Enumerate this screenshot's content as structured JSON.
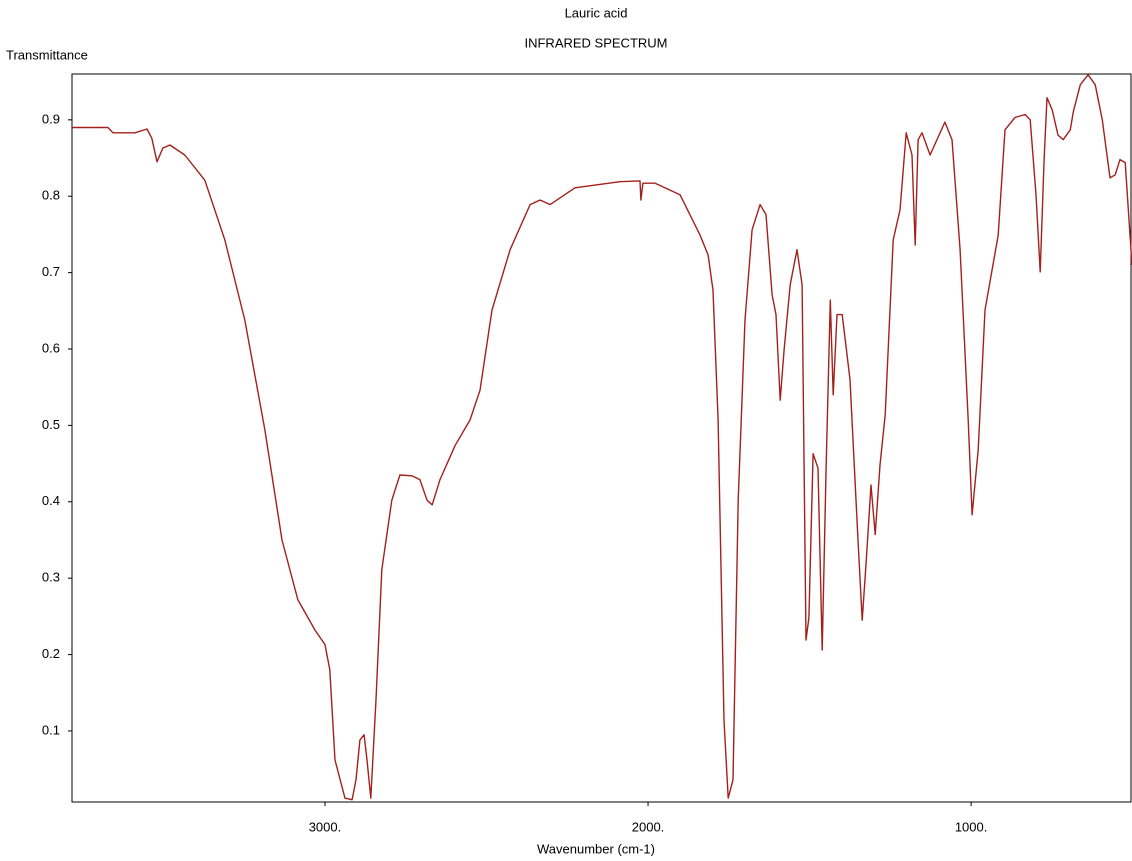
{
  "chart_data": {
    "type": "line",
    "title": "Lauric acid",
    "subtitle": "INFRARED SPECTRUM",
    "y_label": "Transmittance",
    "x_label": "Wavenumber (cm-1)",
    "color": "#a3201c",
    "xlim": [
      3783,
      502
    ],
    "ylim": [
      0.007,
      0.96
    ],
    "xticks": [
      {
        "value": 3000,
        "label": "3000."
      },
      {
        "value": 2000,
        "label": "2000."
      },
      {
        "value": 1000,
        "label": "1000."
      }
    ],
    "yticks": [
      0.1,
      0.2,
      0.3,
      0.4,
      0.5,
      0.6,
      0.7,
      0.8,
      0.9
    ],
    "x": [
      3783,
      3672,
      3656,
      3588,
      3551,
      3536,
      3520,
      3502,
      3480,
      3434,
      3372,
      3310,
      3248,
      3186,
      3133,
      3084,
      3031,
      3000,
      2985,
      2969,
      2938,
      2916,
      2904,
      2892,
      2879,
      2870,
      2858,
      2842,
      2824,
      2793,
      2768,
      2731,
      2706,
      2684,
      2668,
      2644,
      2597,
      2551,
      2520,
      2483,
      2427,
      2365,
      2334,
      2303,
      2226,
      2087,
      2025,
      2022,
      2016,
      1978,
      1901,
      1839,
      1814,
      1799,
      1783,
      1765,
      1752,
      1737,
      1721,
      1700,
      1678,
      1653,
      1635,
      1616,
      1604,
      1591,
      1579,
      1560,
      1539,
      1523,
      1511,
      1502,
      1489,
      1474,
      1461,
      1449,
      1436,
      1427,
      1415,
      1399,
      1375,
      1350,
      1337,
      1325,
      1310,
      1297,
      1282,
      1266,
      1241,
      1220,
      1201,
      1183,
      1173,
      1164,
      1152,
      1127,
      1081,
      1059,
      1034,
      1009,
      997,
      978,
      957,
      916,
      895,
      864,
      833,
      817,
      799,
      786,
      774,
      765,
      749,
      731,
      715,
      693,
      684,
      662,
      638,
      616,
      594,
      570,
      554,
      539,
      523,
      502
    ],
    "values": [
      0.89,
      0.89,
      0.883,
      0.883,
      0.888,
      0.876,
      0.845,
      0.863,
      0.867,
      0.854,
      0.821,
      0.743,
      0.638,
      0.494,
      0.35,
      0.272,
      0.232,
      0.213,
      0.18,
      0.062,
      0.012,
      0.01,
      0.036,
      0.088,
      0.095,
      0.062,
      0.012,
      0.141,
      0.311,
      0.402,
      0.435,
      0.434,
      0.429,
      0.402,
      0.396,
      0.429,
      0.474,
      0.507,
      0.546,
      0.651,
      0.73,
      0.789,
      0.795,
      0.789,
      0.811,
      0.819,
      0.82,
      0.795,
      0.817,
      0.817,
      0.802,
      0.749,
      0.723,
      0.677,
      0.507,
      0.114,
      0.012,
      0.036,
      0.402,
      0.638,
      0.756,
      0.789,
      0.776,
      0.671,
      0.645,
      0.533,
      0.599,
      0.684,
      0.73,
      0.684,
      0.219,
      0.248,
      0.463,
      0.444,
      0.206,
      0.444,
      0.664,
      0.54,
      0.645,
      0.645,
      0.56,
      0.35,
      0.245,
      0.32,
      0.422,
      0.357,
      0.448,
      0.514,
      0.743,
      0.782,
      0.883,
      0.854,
      0.736,
      0.874,
      0.883,
      0.854,
      0.897,
      0.874,
      0.73,
      0.507,
      0.383,
      0.468,
      0.651,
      0.749,
      0.887,
      0.903,
      0.907,
      0.9,
      0.802,
      0.701,
      0.848,
      0.929,
      0.913,
      0.88,
      0.874,
      0.887,
      0.91,
      0.946,
      0.959,
      0.946,
      0.9,
      0.824,
      0.828,
      0.848,
      0.844,
      0.71
    ]
  }
}
